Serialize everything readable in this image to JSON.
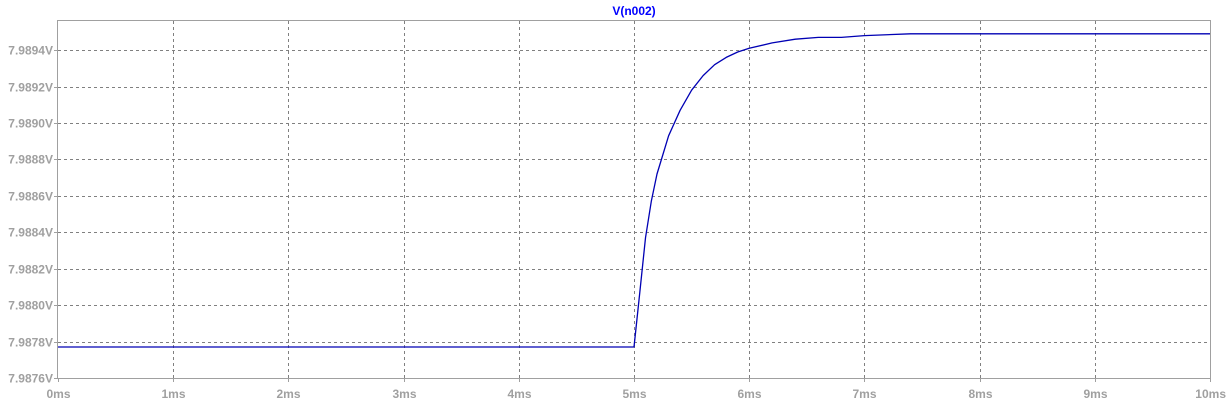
{
  "chart_data": {
    "type": "line",
    "title": "V(n002)",
    "xlabel": "",
    "ylabel": "",
    "xlim": [
      0,
      10
    ],
    "ylim": [
      7.9876,
      7.98956
    ],
    "x_ticks": [
      0,
      1,
      2,
      3,
      4,
      5,
      6,
      7,
      8,
      9,
      10
    ],
    "x_tick_labels": [
      "0ms",
      "1ms",
      "2ms",
      "3ms",
      "4ms",
      "5ms",
      "6ms",
      "7ms",
      "8ms",
      "9ms",
      "10ms"
    ],
    "y_ticks": [
      7.9876,
      7.9878,
      7.988,
      7.9882,
      7.9884,
      7.9886,
      7.9888,
      7.989,
      7.9892,
      7.9894
    ],
    "y_tick_labels": [
      "7.9876V",
      "7.9878V",
      "7.9880V",
      "7.9882V",
      "7.9884V",
      "7.9886V",
      "7.9888V",
      "7.9890V",
      "7.9892V",
      "7.9894V"
    ],
    "grid": true,
    "series": [
      {
        "name": "V(n002)",
        "color": "#0000b4",
        "x": [
          0,
          1,
          2,
          3,
          4,
          4.99,
          5.0,
          5.05,
          5.1,
          5.15,
          5.2,
          5.3,
          5.4,
          5.5,
          5.6,
          5.7,
          5.8,
          5.9,
          6.0,
          6.2,
          6.4,
          6.6,
          6.8,
          7.0,
          7.4,
          8.0,
          9.0,
          10.0
        ],
        "y": [
          7.98777,
          7.98777,
          7.98777,
          7.98777,
          7.98777,
          7.98777,
          7.98777,
          7.98807,
          7.98837,
          7.98857,
          7.98872,
          7.98893,
          7.98907,
          7.98918,
          7.98926,
          7.98932,
          7.98936,
          7.98939,
          7.98941,
          7.98944,
          7.98946,
          7.98947,
          7.98947,
          7.98948,
          7.98949,
          7.98949,
          7.98949,
          7.98949
        ]
      }
    ]
  },
  "colors": {
    "trace": "#0000b4",
    "title": "#0000ff",
    "tick_labels": "#a0a0a0",
    "grid": "#808080",
    "frame": "#a0a0a0"
  }
}
